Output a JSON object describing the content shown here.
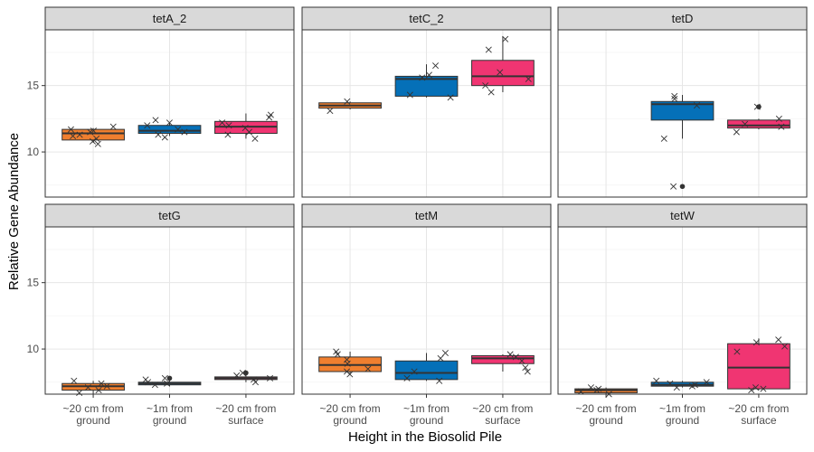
{
  "chart_data": {
    "type": "box",
    "facet_layout": "2 rows x 3 columns, shared axes",
    "xlabel": "Height in the Biosolid Pile",
    "ylabel": "Relative Gene Abundance",
    "y_ticks": [
      10,
      15
    ],
    "ylim": [
      6.6,
      19.2
    ],
    "grid": true,
    "legend": "none",
    "categories": [
      {
        "id": "ground20",
        "lines": [
          "~20 cm from",
          "ground"
        ],
        "color": "#F07F2F"
      },
      {
        "id": "ground1m",
        "lines": [
          "~1m from",
          "ground"
        ],
        "color": "#0570B8"
      },
      {
        "id": "surface20",
        "lines": [
          "~20 cm from",
          "surface"
        ],
        "color": "#F03572"
      }
    ],
    "panels": [
      {
        "title": "tetA_2",
        "boxes": [
          {
            "q1": 10.9,
            "median": 11.4,
            "q3": 11.7,
            "whisker_low": 10.7,
            "whisker_high": 11.8,
            "outliers": [],
            "points": [
              10.8,
              11.0,
              11.2,
              11.3,
              11.5,
              11.6,
              11.7,
              11.9,
              10.6
            ]
          },
          {
            "q1": 11.4,
            "median": 11.6,
            "q3": 12.0,
            "whisker_low": 11.2,
            "whisker_high": 12.2,
            "outliers": [],
            "points": [
              11.1,
              11.3,
              11.5,
              11.7,
              12.0,
              12.2,
              12.4
            ]
          },
          {
            "q1": 11.4,
            "median": 11.9,
            "q3": 12.3,
            "whisker_low": 11.0,
            "whisker_high": 12.9,
            "outliers": [],
            "points": [
              11.0,
              11.3,
              11.5,
              11.8,
              12.0,
              12.2,
              12.6,
              12.8
            ]
          }
        ]
      },
      {
        "title": "tetC_2",
        "boxes": [
          {
            "q1": 13.3,
            "median": 13.5,
            "q3": 13.7,
            "whisker_low": 13.2,
            "whisker_high": 13.8,
            "outliers": [],
            "points": [
              13.1,
              13.8
            ]
          },
          {
            "q1": 14.2,
            "median": 15.5,
            "q3": 15.7,
            "whisker_low": 14.1,
            "whisker_high": 16.6,
            "outliers": [],
            "points": [
              14.1,
              14.3,
              15.6,
              15.8,
              16.5
            ]
          },
          {
            "q1": 15.0,
            "median": 15.7,
            "q3": 16.9,
            "whisker_low": 14.5,
            "whisker_high": 18.7,
            "outliers": [],
            "points": [
              14.5,
              15.0,
              15.5,
              16.0,
              17.7,
              18.5
            ]
          }
        ]
      },
      {
        "title": "tetD",
        "boxes": [
          null,
          {
            "q1": 12.4,
            "median": 13.6,
            "q3": 13.8,
            "whisker_low": 11.0,
            "whisker_high": 14.3,
            "outliers": [
              7.4
            ],
            "points": [
              7.4,
              11.0,
              13.5,
              14.0,
              14.2
            ]
          },
          {
            "q1": 11.8,
            "median": 12.0,
            "q3": 12.4,
            "whisker_low": 11.7,
            "whisker_high": 12.5,
            "outliers": [
              13.4
            ],
            "points": [
              11.5,
              11.9,
              12.1,
              12.5,
              13.4
            ]
          }
        ]
      },
      {
        "title": "tetG",
        "boxes": [
          {
            "q1": 6.9,
            "median": 7.2,
            "q3": 7.4,
            "whisker_low": 6.6,
            "whisker_high": 7.6,
            "outliers": [],
            "points": [
              6.7,
              6.9,
              7.1,
              7.2,
              7.4,
              7.6
            ]
          },
          {
            "q1": 7.3,
            "median": 7.4,
            "q3": 7.5,
            "whisker_low": 7.2,
            "whisker_high": 7.6,
            "outliers": [
              7.8
            ],
            "points": [
              7.3,
              7.4,
              7.5,
              7.7,
              7.8
            ]
          },
          {
            "q1": 7.7,
            "median": 7.8,
            "q3": 7.9,
            "whisker_low": 7.5,
            "whisker_high": 8.1,
            "outliers": [
              8.2
            ],
            "points": [
              7.5,
              7.7,
              7.8,
              8.0,
              8.2
            ]
          }
        ]
      },
      {
        "title": "tetM",
        "boxes": [
          {
            "q1": 8.3,
            "median": 8.8,
            "q3": 9.4,
            "whisker_low": 8.1,
            "whisker_high": 9.8,
            "outliers": [],
            "points": [
              8.1,
              8.3,
              8.5,
              8.9,
              9.2,
              9.6,
              9.8
            ]
          },
          {
            "q1": 7.7,
            "median": 8.2,
            "q3": 9.1,
            "whisker_low": 7.6,
            "whisker_high": 9.7,
            "outliers": [],
            "points": [
              7.6,
              7.8,
              8.3,
              9.3,
              9.7
            ]
          },
          {
            "q1": 8.9,
            "median": 9.3,
            "q3": 9.5,
            "whisker_low": 8.3,
            "whisker_high": 9.6,
            "outliers": [],
            "points": [
              8.3,
              8.6,
              9.1,
              9.4,
              9.6
            ]
          }
        ]
      },
      {
        "title": "tetW",
        "boxes": [
          {
            "q1": 6.7,
            "median": 6.9,
            "q3": 7.0,
            "whisker_low": 6.6,
            "whisker_high": 7.1,
            "outliers": [],
            "points": [
              6.6,
              6.8,
              6.9,
              7.0,
              7.1
            ]
          },
          {
            "q1": 7.2,
            "median": 7.3,
            "q3": 7.5,
            "whisker_low": 7.1,
            "whisker_high": 7.6,
            "outliers": [],
            "points": [
              7.1,
              7.2,
              7.3,
              7.4,
              7.5,
              7.6
            ]
          },
          {
            "q1": 7.0,
            "median": 8.6,
            "q3": 10.4,
            "whisker_low": 6.9,
            "whisker_high": 10.8,
            "outliers": [],
            "points": [
              6.9,
              7.0,
              7.1,
              9.8,
              10.2,
              10.5,
              10.7
            ]
          }
        ]
      }
    ]
  }
}
